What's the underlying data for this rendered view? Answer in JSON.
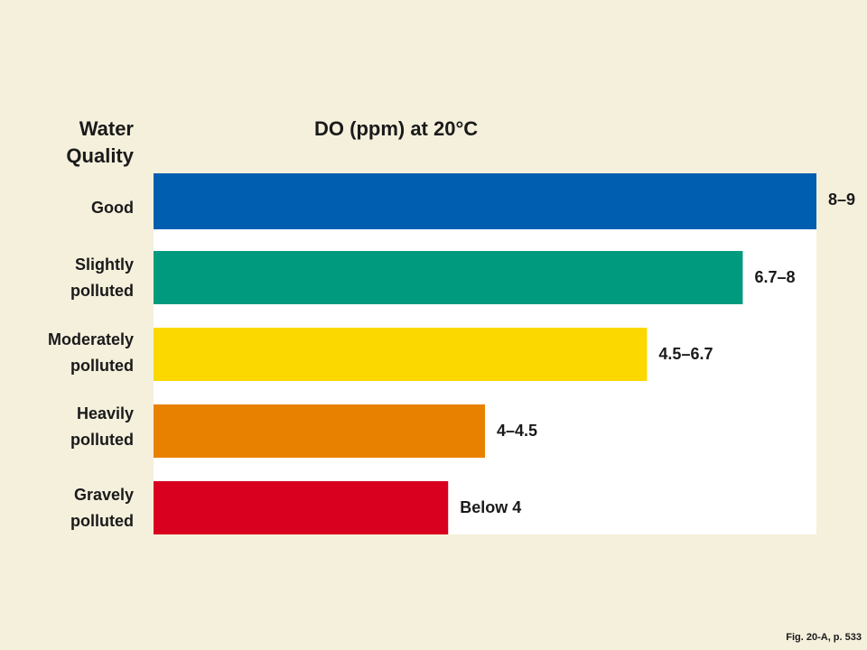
{
  "chart_data": {
    "type": "bar",
    "orientation": "horizontal",
    "title": "DO (ppm) at 20°C",
    "category_heading": [
      "Water",
      "Quality"
    ],
    "categories": [
      [
        "Good"
      ],
      [
        "Slightly",
        "polluted"
      ],
      [
        "Moderately",
        "polluted"
      ],
      [
        "Heavily",
        "polluted"
      ],
      [
        "Gravely",
        "polluted"
      ]
    ],
    "range_labels": [
      "8–9",
      "6.7–8",
      "4.5–6.7",
      "4–4.5",
      "Below 4"
    ],
    "values": [
      9,
      8,
      6.7,
      4.5,
      4
    ],
    "xlim": [
      0,
      9
    ],
    "grid": false,
    "legend": "none",
    "colors": [
      "#005eb0",
      "#009b7e",
      "#fad800",
      "#e98100",
      "#d8001e"
    ]
  },
  "caption": "Fig. 20-A, p. 533",
  "colors": {
    "background": "#f4f0dc",
    "plot_area": "#ffffff"
  }
}
